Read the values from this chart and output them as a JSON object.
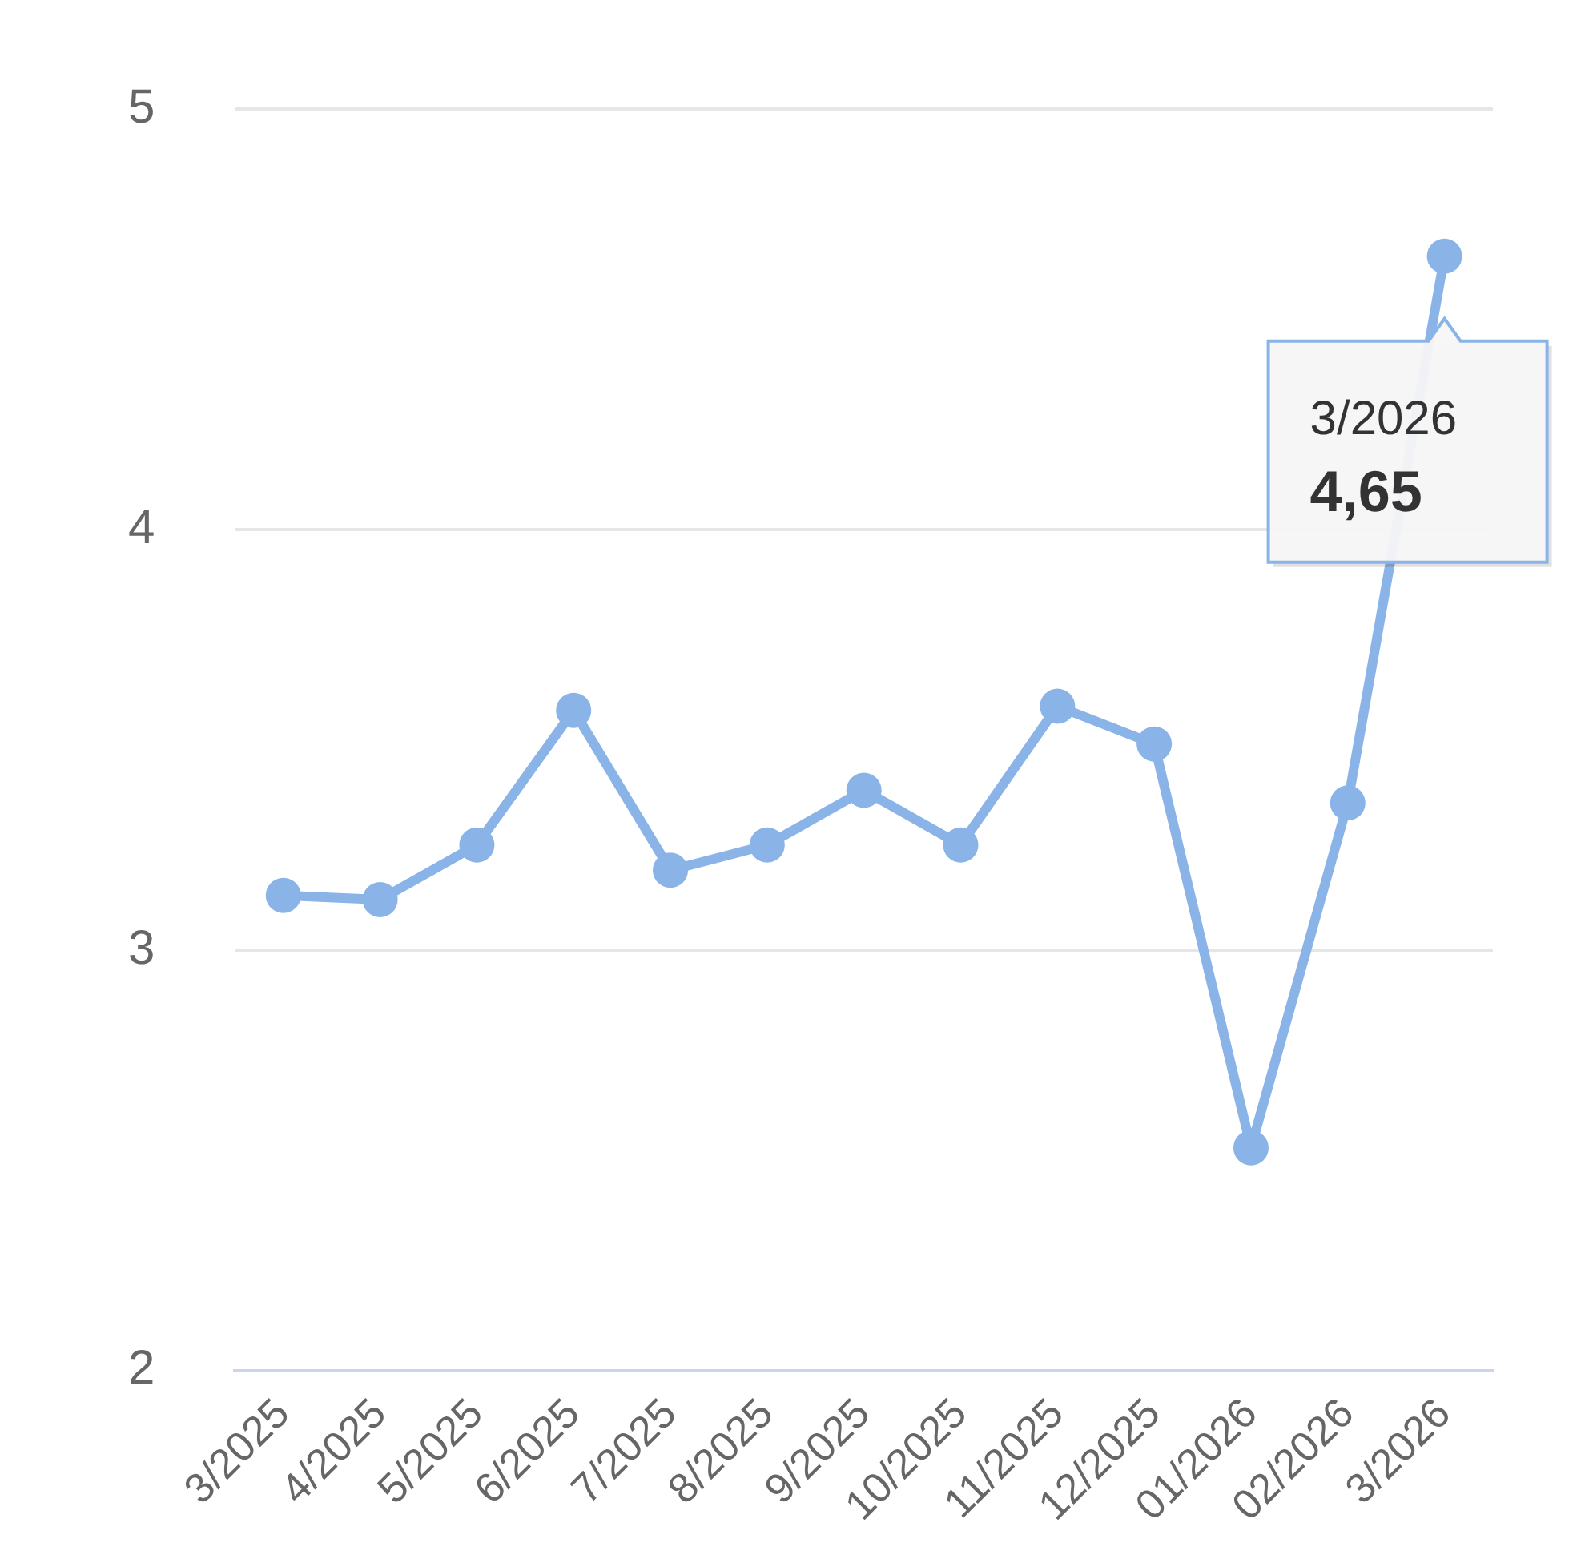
{
  "chart_data": {
    "type": "line",
    "categories": [
      "3/2025",
      "4/2025",
      "5/2025",
      "6/2025",
      "7/2025",
      "8/2025",
      "9/2025",
      "10/2025",
      "11/2025",
      "12/2025",
      "01/2026",
      "02/2026",
      "3/2026"
    ],
    "series": [
      {
        "color": "#8ab4e8",
        "values": [
          3.13,
          3.12,
          3.25,
          3.57,
          3.19,
          3.25,
          3.38,
          3.25,
          3.58,
          3.49,
          2.53,
          3.35,
          4.65
        ]
      }
    ],
    "ylim": [
      2,
      5
    ],
    "yticks": [
      2,
      3,
      4,
      5
    ],
    "grid": "y",
    "legend": false,
    "marker": "circle",
    "line_style": "solid",
    "annotations": [
      "3/2026",
      "4,65"
    ]
  }
}
